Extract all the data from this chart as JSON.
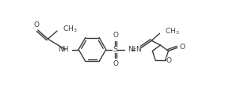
{
  "bg_color": "#ffffff",
  "line_color": "#3a3a3a",
  "line_width": 1.0,
  "font_size": 6.5,
  "fig_width": 2.94,
  "fig_height": 1.25,
  "dpi": 100,
  "xlim": [
    0,
    14
  ],
  "ylim": [
    0,
    6
  ]
}
